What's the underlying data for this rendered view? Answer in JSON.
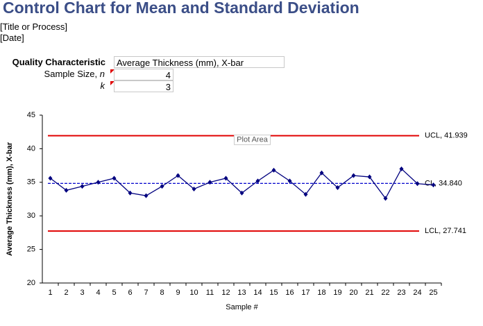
{
  "header": {
    "title": "Control Chart for Mean and Standard Deviation",
    "subtitle": "[Title or Process]",
    "date": "[Date]"
  },
  "form": {
    "quality_label": "Quality Characteristic",
    "quality_value": "Average Thickness (mm), X-bar",
    "sample_size_label": "Sample Size,",
    "sample_size_var": "n",
    "sample_size_value": "4",
    "k_label": "k",
    "k_value": "3"
  },
  "chart_data": {
    "type": "line",
    "x_label": "Sample #",
    "y_label": "Average Thickness (mm), X-bar",
    "tooltip": "Plot Area",
    "categories": [
      "1",
      "2",
      "3",
      "4",
      "5",
      "6",
      "7",
      "8",
      "9",
      "10",
      "11",
      "12",
      "13",
      "14",
      "15",
      "16",
      "17",
      "18",
      "19",
      "20",
      "21",
      "22",
      "23",
      "24",
      "25"
    ],
    "series": [
      {
        "name": "X-bar",
        "color": "#00007f",
        "values": [
          35.6,
          33.8,
          34.4,
          35.0,
          35.6,
          33.4,
          33.0,
          34.4,
          36.0,
          34.0,
          35.0,
          35.6,
          33.4,
          35.2,
          36.8,
          35.2,
          33.2,
          36.4,
          34.2,
          36.0,
          35.8,
          32.6,
          37.0,
          34.8,
          34.6
        ]
      }
    ],
    "control_lines": [
      {
        "value": 41.939,
        "label": "UCL, 41.939",
        "color": "#e00000",
        "dashed": false
      },
      {
        "value": 34.84,
        "label": "CL, 34.840",
        "color": "#0000cc",
        "dashed": true
      },
      {
        "value": 27.741,
        "label": "LCL, 27.741",
        "color": "#e00000",
        "dashed": false
      }
    ],
    "ylim": [
      20,
      45
    ],
    "yticks": [
      20,
      25,
      30,
      35,
      40,
      45
    ]
  }
}
